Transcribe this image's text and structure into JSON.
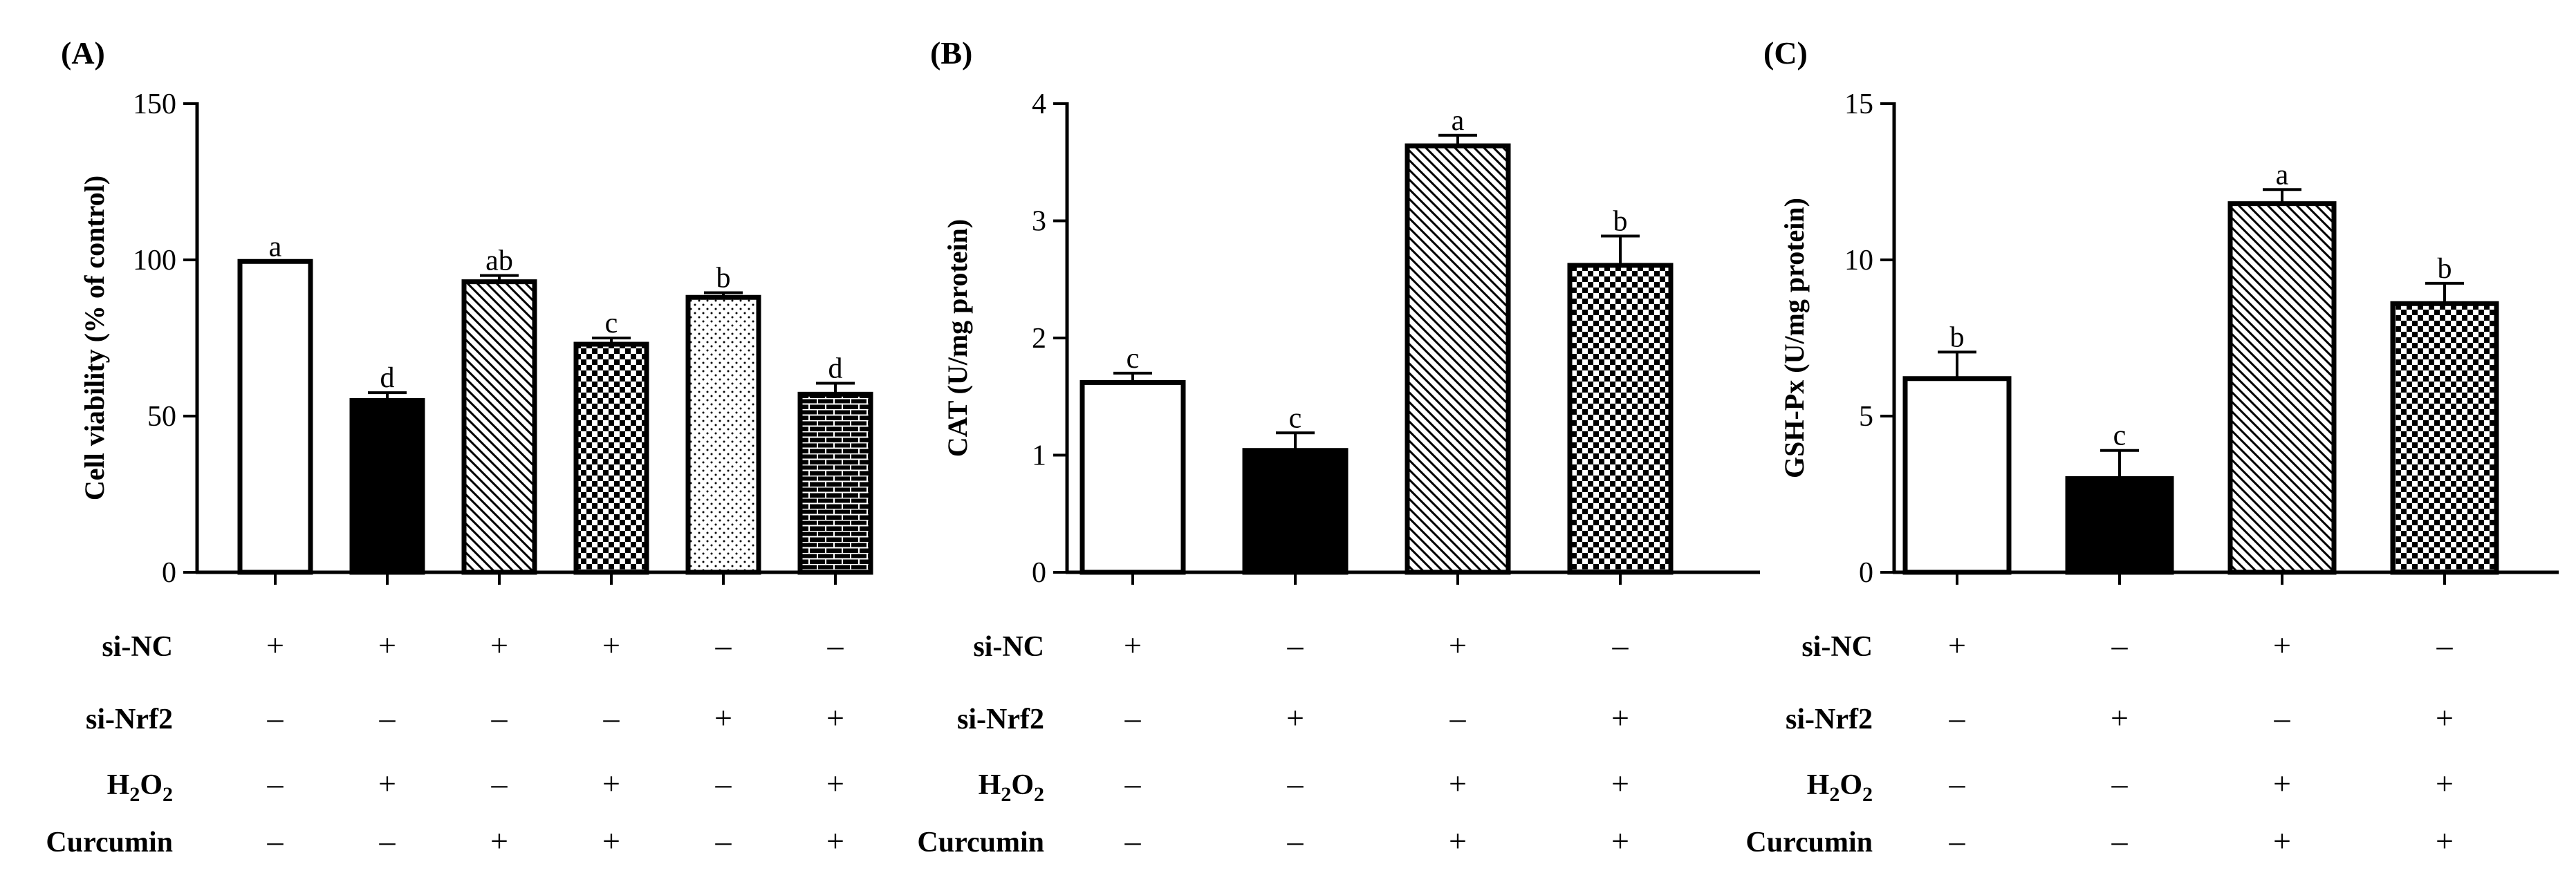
{
  "chart_data": [
    {
      "type": "bar",
      "panel": "(A)",
      "ylabel": "Cell viability (% of control)",
      "ylim": [
        0,
        150
      ],
      "yticks": [
        "0",
        "50",
        "100",
        "150"
      ],
      "values": [
        99.5,
        55,
        93,
        73,
        88,
        57
      ],
      "errors": [
        0,
        2.5,
        2,
        2,
        1.5,
        3.5
      ],
      "letters": [
        "a",
        "d",
        "ab",
        "c",
        "b",
        "d"
      ],
      "fills": [
        "open",
        "solid",
        "hatch",
        "checker",
        "dots",
        "brick"
      ],
      "conditions": {
        "si-NC": [
          "+",
          "+",
          "+",
          "+",
          "–",
          "–"
        ],
        "si-Nrf2": [
          "–",
          "–",
          "–",
          "–",
          "+",
          "+"
        ],
        "H2O2": [
          "–",
          "+",
          "–",
          "+",
          "–",
          "+"
        ],
        "Curcumin": [
          "–",
          "–",
          "+",
          "+",
          "–",
          "+"
        ]
      }
    },
    {
      "type": "bar",
      "panel": "(B)",
      "ylabel": "CAT (U/mg protein)",
      "ylim": [
        0,
        4
      ],
      "yticks": [
        "0",
        "1",
        "2",
        "3",
        "4"
      ],
      "values": [
        1.62,
        1.04,
        3.64,
        2.62
      ],
      "errors": [
        0.08,
        0.15,
        0.09,
        0.25
      ],
      "letters": [
        "c",
        "c",
        "a",
        "b"
      ],
      "fills": [
        "open",
        "solid",
        "hatch",
        "checker"
      ],
      "conditions": {
        "si-NC": [
          "+",
          "–",
          "+",
          "–"
        ],
        "si-Nrf2": [
          "–",
          "+",
          "–",
          "+"
        ],
        "H2O2": [
          "–",
          "–",
          "+",
          "+"
        ],
        "Curcumin": [
          "–",
          "–",
          "+",
          "+"
        ]
      }
    },
    {
      "type": "bar",
      "panel": "(C)",
      "ylabel": "GSH-Px (U/mg protein)",
      "ylim": [
        0,
        15
      ],
      "yticks": [
        "0",
        "5",
        "10",
        "15"
      ],
      "values": [
        6.2,
        3.0,
        11.8,
        8.6
      ],
      "errors": [
        0.85,
        0.9,
        0.45,
        0.65
      ],
      "letters": [
        "b",
        "c",
        "a",
        "b"
      ],
      "fills": [
        "open",
        "solid",
        "hatch",
        "checker"
      ],
      "conditions": {
        "si-NC": [
          "+",
          "–",
          "+",
          "–"
        ],
        "si-Nrf2": [
          "–",
          "+",
          "–",
          "+"
        ],
        "H2O2": [
          "–",
          "–",
          "+",
          "+"
        ],
        "Curcumin": [
          "–",
          "–",
          "+",
          "+"
        ]
      }
    }
  ]
}
